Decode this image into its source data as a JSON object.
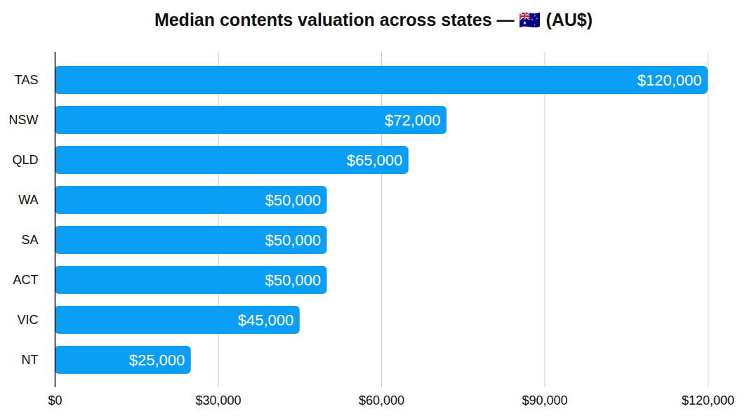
{
  "chart_data": {
    "type": "bar",
    "orientation": "horizontal",
    "title": "Median contents valuation across states — 🇦🇺 (AU$)",
    "categories": [
      "TAS",
      "NSW",
      "QLD",
      "WA",
      "SA",
      "ACT",
      "VIC",
      "NT"
    ],
    "values": [
      120000,
      72000,
      65000,
      50000,
      50000,
      50000,
      45000,
      25000
    ],
    "value_labels": [
      "$120,000",
      "$72,000",
      "$65,000",
      "$50,000",
      "$50,000",
      "$50,000",
      "$45,000",
      "$25,000"
    ],
    "data_labels": true,
    "color": "#0a9ef7",
    "xlim": [
      0,
      120000
    ],
    "xticks": [
      {
        "value": 0,
        "label": "$0"
      },
      {
        "value": 30000,
        "label": "$30,000"
      },
      {
        "value": 60000,
        "label": "$60,000"
      },
      {
        "value": 90000,
        "label": "$90,000"
      },
      {
        "value": 120000,
        "label": "$120,000"
      }
    ],
    "grid": true
  }
}
